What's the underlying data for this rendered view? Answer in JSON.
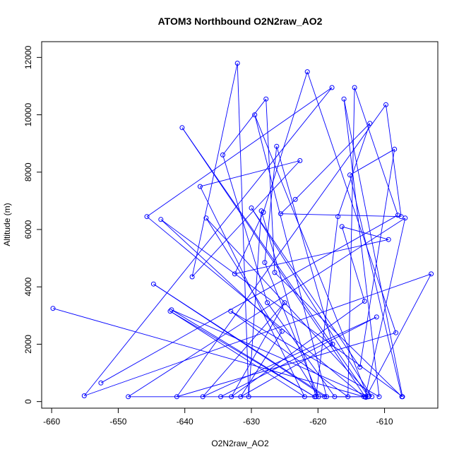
{
  "chart_data": {
    "type": "scatter",
    "title": "ATOM3 Northbound O2N2raw_AO2",
    "xlabel": "O2N2raw_AO2",
    "ylabel": "Altitude (m)",
    "xlim": [
      -661.5,
      -602.0
    ],
    "ylim": [
      -230,
      12550
    ],
    "xticks": [
      -660,
      -650,
      -640,
      -630,
      -620,
      -610
    ],
    "yticks": [
      0,
      2000,
      4000,
      6000,
      8000,
      10000,
      12000
    ],
    "grid": false,
    "legend": "none",
    "series_color": "#0000ff",
    "x": [
      -659.8,
      -612.8,
      -603.0,
      -655.1,
      -617.9,
      -645.7,
      -613.1,
      -648.5,
      -606.9,
      -612.9,
      -640.4,
      -612.4,
      -642.0,
      -620.5,
      -642.2,
      -622.0,
      -637.7,
      -622.7,
      -638.9,
      -632.1,
      -630.4,
      -628.5,
      -620.3,
      -617.0,
      -612.2,
      -623.4,
      -625.6,
      -607.5,
      -609.8,
      -641.2,
      -608.3,
      -621.6,
      -628.2,
      -632.5,
      -609.4,
      -616.4,
      -613.0,
      -633.0,
      -625.0,
      -637.3,
      -611.2,
      -634.6,
      -619.0,
      -644.7,
      -618.7,
      -629.5,
      -612.5,
      -617.5,
      -627.6,
      -634.3,
      -627.8,
      -626.5,
      -607.4,
      -615.2,
      -608.5,
      -613.7,
      -630.0,
      -611.9,
      -636.8,
      -619.9,
      -628.0,
      -626.2,
      -617.8,
      -631.6,
      -625.4,
      -643.6,
      -607.3,
      -616.1,
      -610.8,
      -633.1,
      -615.5,
      -614.5,
      -608.0,
      -652.6
    ],
    "y": [
      3250,
      150,
      4450,
      200,
      10950,
      6450,
      170,
      170,
      6400,
      170,
      9550,
      170,
      3200,
      170,
      3150,
      170,
      7500,
      8400,
      4350,
      11800,
      170,
      6650,
      170,
      6450,
      9700,
      7050,
      6550,
      6450,
      10350,
      170,
      2400,
      11500,
      6600,
      4450,
      5650,
      6100,
      3500,
      170,
      3450,
      170,
      2950,
      170,
      170,
      4100,
      170,
      10000,
      170,
      170,
      3450,
      8600,
      10550,
      4500,
      170,
      7900,
      8800,
      1200,
      6750,
      170,
      6400,
      170,
      4850,
      8900,
      2000,
      170,
      2450,
      6350,
      170,
      10550,
      170,
      3150,
      170,
      10950,
      6500,
      650
    ]
  }
}
